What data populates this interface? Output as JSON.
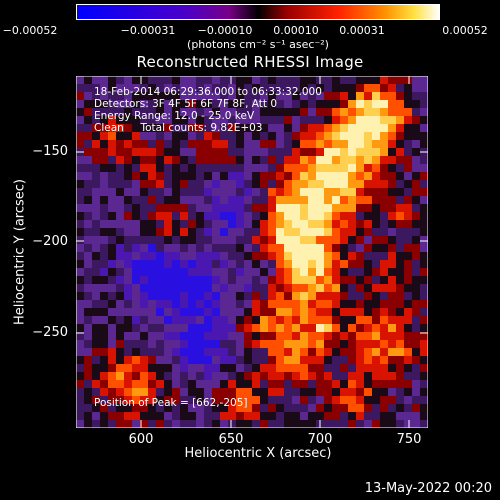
{
  "colorbar": {
    "ticks": [
      "−0.00052",
      "−0.00031",
      "−0.00010",
      "0.00010",
      "0.00031",
      "0.00052"
    ],
    "units": "(photons cm⁻² s⁻¹ asec⁻²)"
  },
  "title": "Reconstructed RHESSI Image",
  "info": {
    "line1": "18-Feb-2014 06:29:36.000 to 06:33:32.000",
    "line2": "Detectors: 3F 4F 5F 6F 7F 8F, Att 0",
    "line3": "Energy Range: 12.0 - 25.0 keV",
    "line4": "Clean     Total counts: 9.82E+03",
    "peak": "Position of Peak = [662,-205]"
  },
  "xaxis": {
    "label": "Heliocentric X (arcsec)",
    "ticks": [
      "600",
      "650",
      "700",
      "750"
    ]
  },
  "yaxis": {
    "label": "Heliocentric Y (arcsec)",
    "ticks": [
      "−150",
      "−200",
      "−250"
    ]
  },
  "timestamp": "13-May-2022 00:20",
  "colors": {
    "background": "#000000",
    "foreground": "#ffffff"
  }
}
